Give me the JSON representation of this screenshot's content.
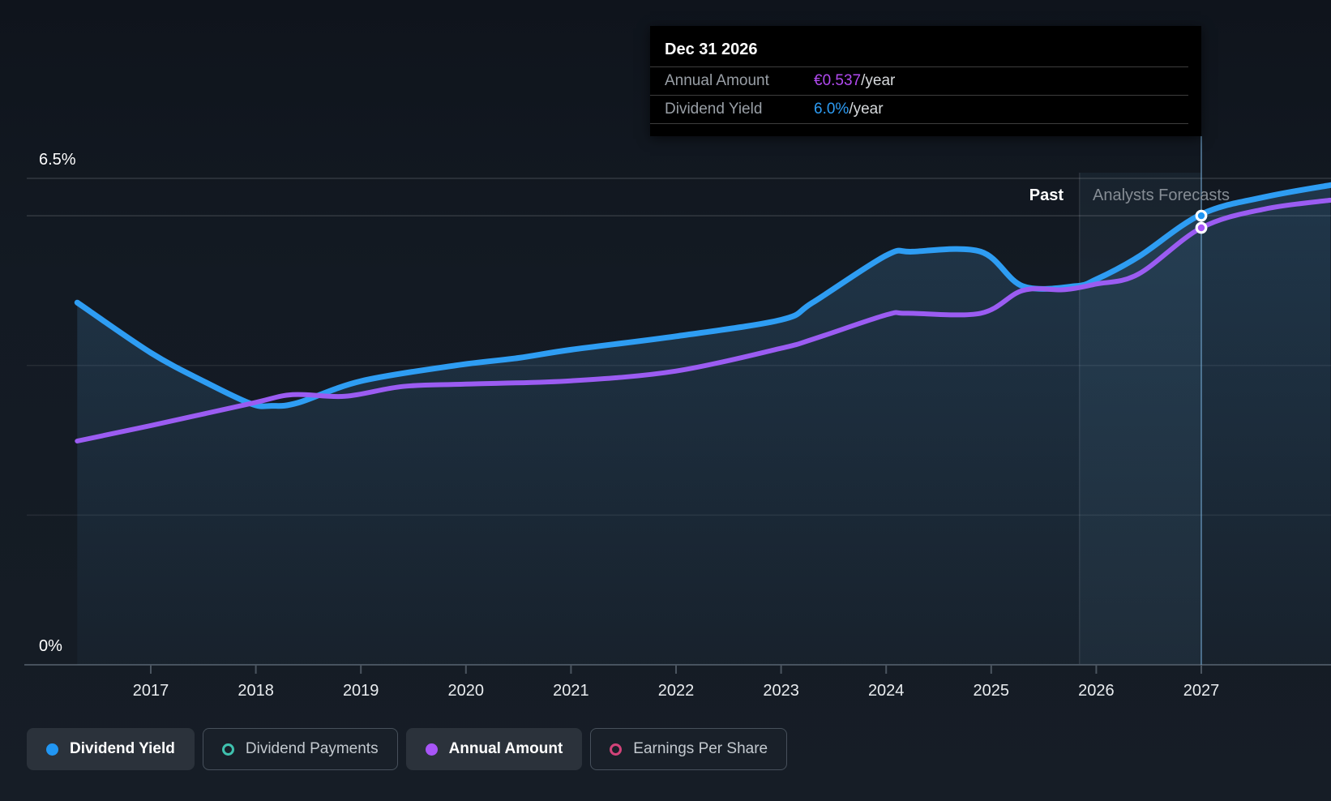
{
  "tooltip": {
    "title": "Dec 31 2026",
    "rows": [
      {
        "label": "Annual Amount",
        "value": "€0.537",
        "suffix": "/year",
        "color": "#b14af0"
      },
      {
        "label": "Dividend Yield",
        "value": "6.0%",
        "suffix": "/year",
        "color": "#2d9cf4"
      }
    ]
  },
  "annotations": {
    "past_label": "Past",
    "forecast_label": "Analysts Forecasts"
  },
  "axis": {
    "y_top_label": "6.5%",
    "y_bottom_label": "0%"
  },
  "legend": [
    {
      "id": "dividend-yield",
      "label": "Dividend Yield",
      "color": "#2196f3",
      "filled": true,
      "active": true
    },
    {
      "id": "dividend-payments",
      "label": "Dividend Payments",
      "color": "#3fc1ae",
      "filled": false,
      "active": false
    },
    {
      "id": "annual-amount",
      "label": "Annual Amount",
      "color": "#a855f7",
      "filled": true,
      "active": true
    },
    {
      "id": "earnings-per-share",
      "label": "Earnings Per Share",
      "color": "#d24379",
      "filled": false,
      "active": false
    }
  ],
  "chart_data": {
    "type": "line",
    "x_ticks": [
      2017,
      2018,
      2019,
      2020,
      2021,
      2022,
      2023,
      2024,
      2025,
      2026,
      2027
    ],
    "x_range": [
      2016.3,
      2028.23
    ],
    "y_axis": {
      "unit": "%",
      "range_pct": [
        0,
        6.5
      ],
      "gridlines_pct": [
        6.5,
        6.0,
        4.0,
        2.0
      ],
      "top_label": "6.5%",
      "bottom_label": "0%"
    },
    "divider_year": 2025.84,
    "hover": {
      "date": "Dec 31 2026",
      "year": 2027.0,
      "dividend_yield_pct": 6.0,
      "annual_amount_eur": 0.537
    },
    "series": [
      {
        "name": "Dividend Yield",
        "unit": "%",
        "color": "#2e9df3",
        "width": 7,
        "area_fill": true,
        "points": [
          [
            2016.3,
            4.84
          ],
          [
            2017.0,
            4.17
          ],
          [
            2017.5,
            3.79
          ],
          [
            2017.95,
            3.49
          ],
          [
            2018.15,
            3.46
          ],
          [
            2018.4,
            3.5
          ],
          [
            2019.0,
            3.79
          ],
          [
            2019.9,
            4.0
          ],
          [
            2020.5,
            4.1
          ],
          [
            2021.0,
            4.21
          ],
          [
            2022.0,
            4.39
          ],
          [
            2023.0,
            4.61
          ],
          [
            2023.3,
            4.84
          ],
          [
            2024.0,
            5.47
          ],
          [
            2024.25,
            5.52
          ],
          [
            2024.9,
            5.52
          ],
          [
            2025.3,
            5.06
          ],
          [
            2025.8,
            5.06
          ],
          [
            2026.0,
            5.15
          ],
          [
            2026.4,
            5.45
          ],
          [
            2027.0,
            6.02
          ],
          [
            2027.6,
            6.25
          ],
          [
            2028.23,
            6.41
          ]
        ]
      },
      {
        "name": "Annual Amount",
        "unit": "EUR/year",
        "color": "#9b5cf2",
        "width": 6,
        "area_fill": false,
        "points": [
          [
            2016.3,
            0.275
          ],
          [
            2017.0,
            0.294
          ],
          [
            2017.95,
            0.321
          ],
          [
            2018.35,
            0.332
          ],
          [
            2018.85,
            0.33
          ],
          [
            2019.4,
            0.342
          ],
          [
            2020.0,
            0.345
          ],
          [
            2021.0,
            0.349
          ],
          [
            2022.0,
            0.361
          ],
          [
            2023.0,
            0.389
          ],
          [
            2023.3,
            0.4
          ],
          [
            2024.0,
            0.43
          ],
          [
            2024.2,
            0.432
          ],
          [
            2024.9,
            0.432
          ],
          [
            2025.3,
            0.46
          ],
          [
            2025.7,
            0.461
          ],
          [
            2026.0,
            0.468
          ],
          [
            2026.4,
            0.48
          ],
          [
            2027.0,
            0.537
          ],
          [
            2027.6,
            0.56
          ],
          [
            2028.23,
            0.571
          ]
        ]
      }
    ]
  }
}
